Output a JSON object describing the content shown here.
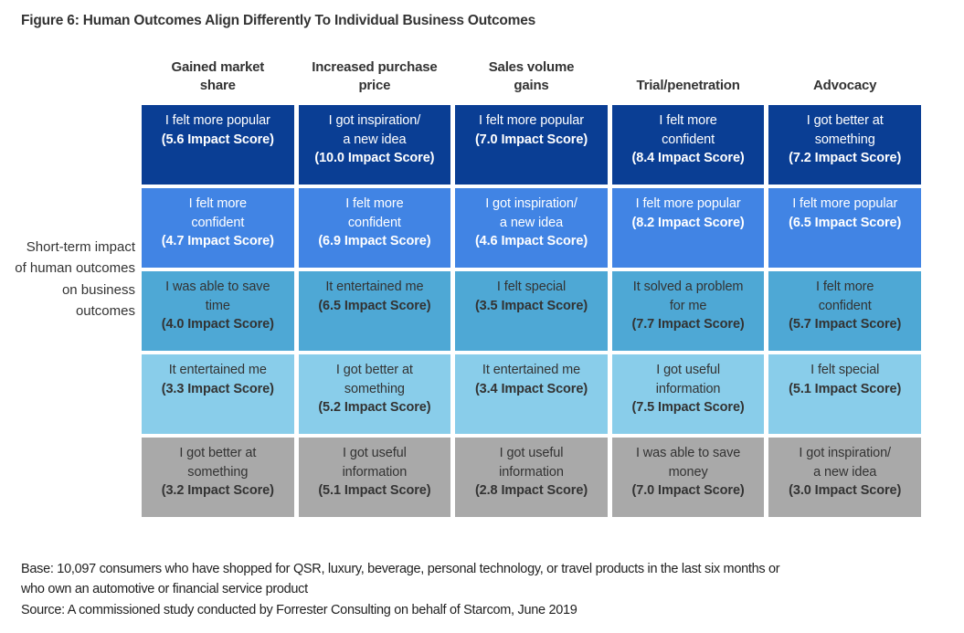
{
  "title": "Figure 6: Human Outcomes Align Differently To Individual Business Outcomes",
  "row_axis_label": "Short-term impact of human outcomes on business outcomes",
  "footer": {
    "base": "Base: 10,097 consumers who have shopped for QSR, luxury, beverage, personal technology, or travel products in the last six months or\nwho own an automotive or financial service product",
    "source": "Source: A commissioned study conducted by Forrester Consulting on behalf of Starcom, June 2019"
  },
  "colors": {
    "background": "#ffffff",
    "title_text": "#333333",
    "header_text": "#333333",
    "dark_cell_text": "#ffffff",
    "light_cell_text": "#333333",
    "footer_text": "#1f1f1f"
  },
  "chart_data": {
    "type": "table",
    "title": "Figure 6: Human Outcomes Align Differently To Individual Business Outcomes",
    "row_axis_label": "Short-term impact of human outcomes on business outcomes",
    "columns": [
      "Gained market\nshare",
      "Increased purchase\nprice",
      "Sales volume\ngains",
      "Trial/penetration",
      "Advocacy"
    ],
    "rank_note": "rows ordered top (highest alignment, dark blue) to bottom (lowest, gray)",
    "row_colors": [
      "#0a3e94",
      "#4184e4",
      "#4ea8d5",
      "#89cdea",
      "#a9a9a9"
    ],
    "row_text_colors": [
      "#ffffff",
      "#ffffff",
      "#333333",
      "#333333",
      "#333333"
    ],
    "rows": [
      [
        {
          "label": "I felt more popular",
          "score": 5.6,
          "score_label": "(5.6 Impact Score)"
        },
        {
          "label": "I got inspiration/\na new idea",
          "score": 10.0,
          "score_label": "(10.0 Impact Score)"
        },
        {
          "label": "I felt more popular",
          "score": 7.0,
          "score_label": "(7.0 Impact Score)"
        },
        {
          "label": "I felt more\nconfident",
          "score": 8.4,
          "score_label": "(8.4 Impact Score)"
        },
        {
          "label": "I got better at\nsomething",
          "score": 7.2,
          "score_label": "(7.2 Impact Score)"
        }
      ],
      [
        {
          "label": "I felt more\nconfident",
          "score": 4.7,
          "score_label": "(4.7 Impact Score)"
        },
        {
          "label": "I felt more\nconfident",
          "score": 6.9,
          "score_label": "(6.9 Impact Score)"
        },
        {
          "label": "I got inspiration/\na new idea",
          "score": 4.6,
          "score_label": "(4.6 Impact Score)"
        },
        {
          "label": "I felt more popular",
          "score": 8.2,
          "score_label": "(8.2 Impact Score)"
        },
        {
          "label": "I felt more popular",
          "score": 6.5,
          "score_label": "(6.5 Impact Score)"
        }
      ],
      [
        {
          "label": "I was able to save\ntime",
          "score": 4.0,
          "score_label": "(4.0 Impact Score)"
        },
        {
          "label": "It entertained me",
          "score": 6.5,
          "score_label": "(6.5 Impact Score)"
        },
        {
          "label": "I felt special",
          "score": 3.5,
          "score_label": "(3.5 Impact Score)"
        },
        {
          "label": "It solved a problem\nfor me",
          "score": 7.7,
          "score_label": "(7.7 Impact Score)"
        },
        {
          "label": "I felt more\nconfident",
          "score": 5.7,
          "score_label": "(5.7 Impact Score)"
        }
      ],
      [
        {
          "label": "It entertained me",
          "score": 3.3,
          "score_label": "(3.3 Impact Score)"
        },
        {
          "label": "I got better at\nsomething",
          "score": 5.2,
          "score_label": "(5.2 Impact Score)"
        },
        {
          "label": "It entertained me",
          "score": 3.4,
          "score_label": "(3.4 Impact Score)"
        },
        {
          "label": "I got useful\ninformation",
          "score": 7.5,
          "score_label": "(7.5 Impact Score)"
        },
        {
          "label": "I felt special",
          "score": 5.1,
          "score_label": "(5.1 Impact Score)"
        }
      ],
      [
        {
          "label": "I got better at\nsomething",
          "score": 3.2,
          "score_label": "(3.2 Impact Score)"
        },
        {
          "label": "I got useful\ninformation",
          "score": 5.1,
          "score_label": "(5.1 Impact Score)"
        },
        {
          "label": "I got useful\ninformation",
          "score": 2.8,
          "score_label": "(2.8 Impact Score)"
        },
        {
          "label": "I was able to save\nmoney",
          "score": 7.0,
          "score_label": "(7.0 Impact Score)"
        },
        {
          "label": "I got inspiration/\na new idea",
          "score": 3.0,
          "score_label": "(3.0 Impact Score)"
        }
      ]
    ]
  }
}
